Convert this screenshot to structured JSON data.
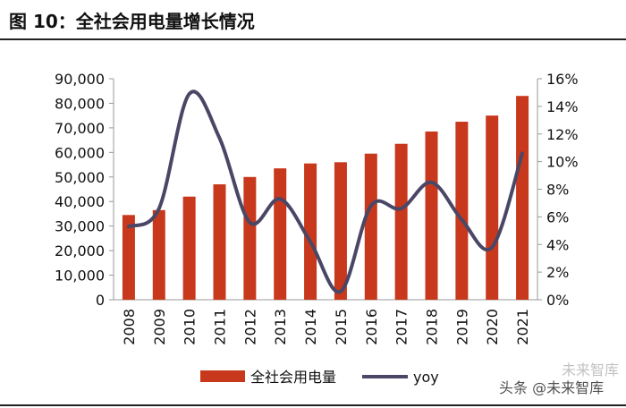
{
  "title": "图 10：全社会用电量增长情况",
  "watermark": "头条 @未来智库",
  "watermark_faint": "未来智库",
  "colors": {
    "bar": "#c8381c",
    "line": "#4a4766",
    "axis": "#999999"
  },
  "chart_data": {
    "type": "bar",
    "title": "全社会用电量增长情况",
    "categories": [
      "2008",
      "2009",
      "2010",
      "2011",
      "2012",
      "2013",
      "2014",
      "2015",
      "2016",
      "2017",
      "2018",
      "2019",
      "2020",
      "2021"
    ],
    "series": [
      {
        "name": "全社会用电量",
        "type": "bar",
        "axis": "left",
        "values": [
          34500,
          36500,
          42000,
          47000,
          50000,
          53500,
          55500,
          56000,
          59500,
          63500,
          68500,
          72500,
          75000,
          83000
        ]
      },
      {
        "name": "yoy",
        "type": "line",
        "axis": "right",
        "smooth": true,
        "values": [
          5.3,
          6.6,
          14.9,
          11.7,
          5.6,
          7.3,
          4.2,
          0.6,
          6.8,
          6.6,
          8.5,
          5.8,
          3.8,
          10.6
        ]
      }
    ],
    "y_left": {
      "min": 0,
      "max": 90000,
      "step": 10000,
      "tick_labels": [
        "0",
        "10,000",
        "20,000",
        "30,000",
        "40,000",
        "50,000",
        "60,000",
        "70,000",
        "80,000",
        "90,000"
      ]
    },
    "y_right": {
      "min": 0,
      "max": 16,
      "step": 2,
      "tick_labels": [
        "0%",
        "2%",
        "4%",
        "6%",
        "8%",
        "10%",
        "12%",
        "14%",
        "16%"
      ]
    },
    "legend": {
      "position": "bottom-center",
      "entries": [
        "全社会用电量",
        "yoy"
      ]
    },
    "grid": false
  }
}
